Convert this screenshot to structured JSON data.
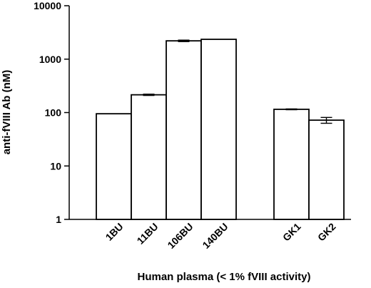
{
  "chart_data": {
    "type": "bar",
    "title": "",
    "xlabel": "Human plasma (< 1% fVIII activity)",
    "ylabel": "anti-fVIII Ab (nM)",
    "yscale": "log",
    "ylim": [
      1,
      10000
    ],
    "yticks": [
      "1",
      "10",
      "100",
      "1000",
      "10000"
    ],
    "grid": false,
    "legend": "none",
    "categories": [
      "1BU",
      "11BU",
      "106BU",
      "140BU",
      "GK1",
      "GK2"
    ],
    "series": [
      {
        "values": [
          95,
          215,
          2200,
          2350,
          115,
          72
        ],
        "error": [
          0,
          6,
          70,
          0,
          2,
          9
        ]
      }
    ],
    "bar_color": "#ffffff",
    "edge_color": "#000000"
  }
}
